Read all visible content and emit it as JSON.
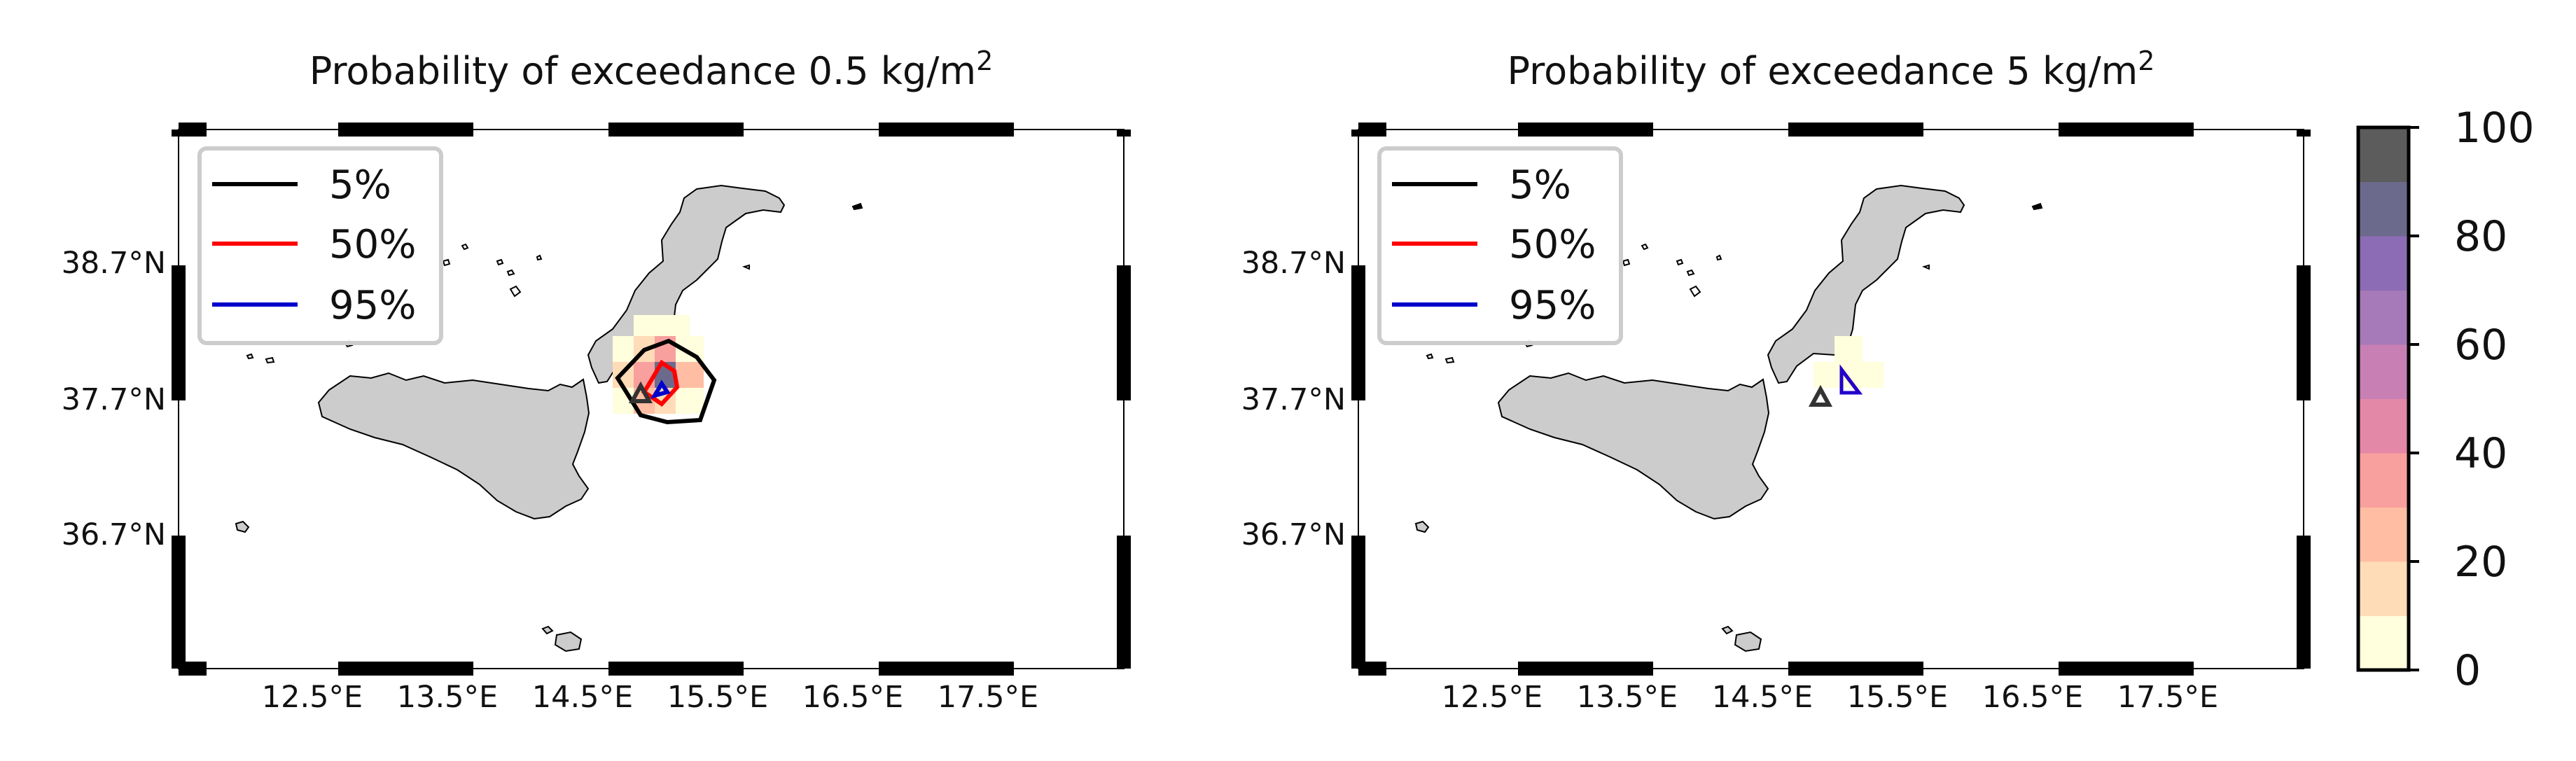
{
  "panels": [
    {
      "title": "Probability of exceedance 0.5 kg/m",
      "title_sup": "2",
      "legend": [
        {
          "label": "5%",
          "color": "#000000"
        },
        {
          "label": "50%",
          "color": "#ff0000"
        },
        {
          "label": "95%",
          "color": "#0000cc"
        }
      ]
    },
    {
      "title": "Probability of exceedance 5 kg/m",
      "title_sup": "2",
      "legend": [
        {
          "label": "5%",
          "color": "#000000"
        },
        {
          "label": "50%",
          "color": "#ff0000"
        },
        {
          "label": "95%",
          "color": "#0000cc"
        }
      ]
    }
  ],
  "x_ticks": [
    "12.5°E",
    "13.5°E",
    "14.5°E",
    "15.5°E",
    "16.5°E",
    "17.5°E"
  ],
  "y_ticks": [
    "38.7°N",
    "37.7°N",
    "36.7°N"
  ],
  "colorbar": {
    "ticks": [
      "0",
      "20",
      "40",
      "60",
      "80",
      "100"
    ],
    "colors": [
      "#fffedd",
      "#ffdcb8",
      "#ffbea4",
      "#f8a09e",
      "#e488a8",
      "#c880b4",
      "#a67ab8",
      "#8c6cb4",
      "#6c6a8c",
      "#5c5c5c"
    ]
  },
  "land_color": "#cccccc"
}
